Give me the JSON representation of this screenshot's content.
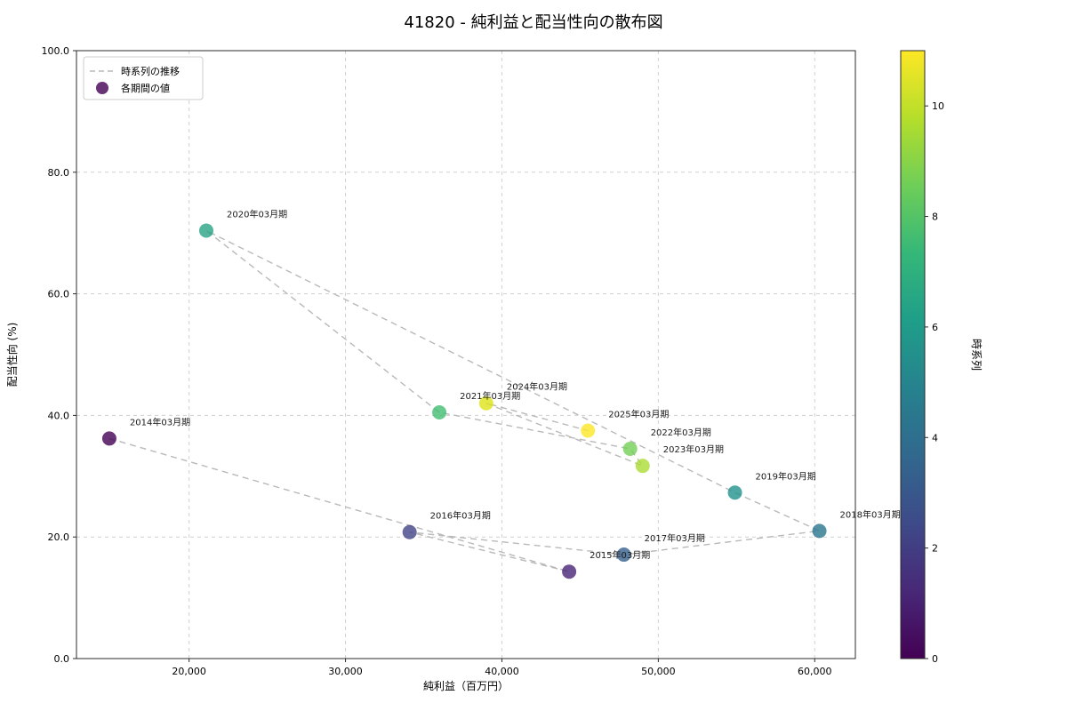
{
  "title": "41820 - 純利益と配当性向の散布図",
  "chart_data": {
    "type": "scatter",
    "title": "41820 - 純利益と配当性向の散布図",
    "xlabel": "純利益（百万円）",
    "ylabel": "配当性向 (%)",
    "xlim": [
      12800,
      62600
    ],
    "ylim": [
      0,
      100
    ],
    "x_ticks": [
      20000,
      30000,
      40000,
      50000,
      60000
    ],
    "x_tick_labels": [
      "20,000",
      "30,000",
      "40,000",
      "50,000",
      "60,000"
    ],
    "y_ticks": [
      0,
      20,
      40,
      60,
      80,
      100
    ],
    "y_tick_labels": [
      "0.0",
      "20.0",
      "40.0",
      "60.0",
      "80.0",
      "100.0"
    ],
    "grid": "dashed",
    "line_color": "#b9b9b9",
    "legend": [
      {
        "type": "line",
        "label": "時系列の推移"
      },
      {
        "type": "marker",
        "label": "各期間の値"
      }
    ],
    "colorbar": {
      "label": "時系列",
      "vmin": 0,
      "vmax": 11,
      "ticks": [
        0,
        2,
        4,
        6,
        8,
        10
      ],
      "gradient_colors": [
        "#440154",
        "#482878",
        "#3e4a89",
        "#31688e",
        "#26828e",
        "#1f9e89",
        "#35b779",
        "#6ece58",
        "#b5de2b",
        "#fde725"
      ]
    },
    "points": [
      {
        "label": "2014年03月期",
        "x": 14900,
        "y": 36.2,
        "t": 0,
        "color": "#440154"
      },
      {
        "label": "2015年03月期",
        "x": 44300,
        "y": 14.3,
        "t": 1,
        "color": "#482475"
      },
      {
        "label": "2016年03月期",
        "x": 34100,
        "y": 20.8,
        "t": 2,
        "color": "#414487"
      },
      {
        "label": "2017年03月期",
        "x": 47800,
        "y": 17.1,
        "t": 3,
        "color": "#35608d"
      },
      {
        "label": "2018年03月期",
        "x": 60300,
        "y": 21.0,
        "t": 4,
        "color": "#2b758e"
      },
      {
        "label": "2019年03月期",
        "x": 54900,
        "y": 27.3,
        "t": 5,
        "color": "#21918c"
      },
      {
        "label": "2020年03月期",
        "x": 21100,
        "y": 70.4,
        "t": 6,
        "color": "#27a383"
      },
      {
        "label": "2021年03月期",
        "x": 36000,
        "y": 40.5,
        "t": 7,
        "color": "#42be71"
      },
      {
        "label": "2022年03月期",
        "x": 48200,
        "y": 34.5,
        "t": 8,
        "color": "#73d056"
      },
      {
        "label": "2023年03月期",
        "x": 49000,
        "y": 31.7,
        "t": 9,
        "color": "#aadc32"
      },
      {
        "label": "2024年03月期",
        "x": 39000,
        "y": 42.0,
        "t": 10,
        "color": "#dde318"
      },
      {
        "label": "2025年03月期",
        "x": 45500,
        "y": 37.5,
        "t": 11,
        "color": "#fde725"
      }
    ]
  }
}
